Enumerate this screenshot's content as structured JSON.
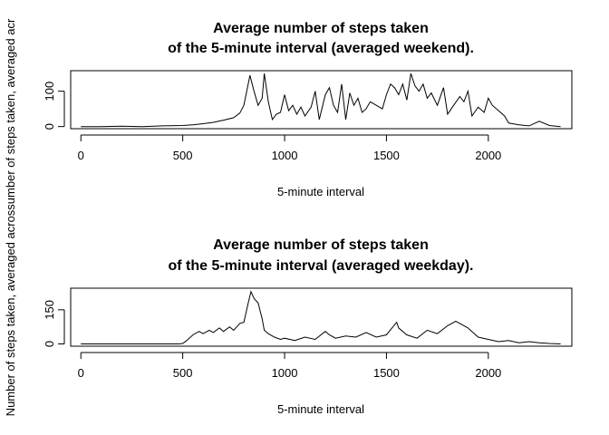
{
  "shared_ylabel": "Number of steps taken, averaged acrossumber of steps taken, averaged acr",
  "chart_data": [
    {
      "type": "line",
      "title": "Average number of steps taken\nof the 5-minute interval (averaged weekend).",
      "title_lines": [
        "Average number of steps taken",
        "of the 5-minute interval (averaged weekend)."
      ],
      "xlabel": "5-minute interval",
      "ylabel": "",
      "xlim": [
        -50,
        2410
      ],
      "ylim": [
        -6,
        158
      ],
      "xticks": [
        0,
        500,
        1000,
        1500,
        2000
      ],
      "yticks": [
        0,
        100
      ],
      "grid": false,
      "series": [
        {
          "x": [
            0,
            100,
            200,
            300,
            400,
            500,
            550,
            600,
            650,
            700,
            750,
            780,
            800,
            830,
            850,
            870,
            890,
            900,
            920,
            940,
            960,
            980,
            1000,
            1020,
            1040,
            1060,
            1080,
            1100,
            1130,
            1150,
            1170,
            1200,
            1220,
            1240,
            1260,
            1280,
            1300,
            1320,
            1340,
            1360,
            1380,
            1400,
            1420,
            1450,
            1480,
            1500,
            1520,
            1540,
            1560,
            1580,
            1600,
            1620,
            1640,
            1660,
            1680,
            1700,
            1720,
            1750,
            1780,
            1800,
            1830,
            1860,
            1880,
            1900,
            1920,
            1950,
            1980,
            2000,
            2020,
            2050,
            2080,
            2100,
            2150,
            2200,
            2250,
            2300,
            2355
          ],
          "y": [
            0,
            0,
            1,
            0,
            2,
            3,
            5,
            8,
            12,
            18,
            25,
            38,
            60,
            145,
            100,
            60,
            80,
            150,
            70,
            20,
            35,
            40,
            90,
            45,
            60,
            35,
            55,
            30,
            55,
            100,
            20,
            90,
            110,
            60,
            40,
            120,
            20,
            95,
            60,
            80,
            40,
            50,
            70,
            60,
            50,
            90,
            120,
            110,
            90,
            120,
            75,
            150,
            115,
            100,
            120,
            80,
            95,
            60,
            110,
            35,
            60,
            85,
            70,
            100,
            30,
            55,
            40,
            80,
            60,
            45,
            30,
            10,
            5,
            2,
            15,
            3,
            0
          ]
        }
      ]
    },
    {
      "type": "line",
      "title": "Average number of steps taken\nof the 5-minute interval (averaged weekday).",
      "title_lines": [
        "Average number of steps taken",
        "of the 5-minute interval (averaged weekday)."
      ],
      "xlabel": "5-minute interval",
      "ylabel": "",
      "xlim": [
        -50,
        2410
      ],
      "ylim": [
        -10,
        245
      ],
      "xticks": [
        0,
        500,
        1000,
        1500,
        2000
      ],
      "yticks": [
        0,
        150
      ],
      "grid": false,
      "series": [
        {
          "x": [
            0,
            100,
            200,
            300,
            400,
            480,
            500,
            520,
            550,
            580,
            600,
            630,
            650,
            680,
            700,
            730,
            750,
            780,
            800,
            820,
            835,
            850,
            870,
            890,
            900,
            920,
            950,
            980,
            1000,
            1050,
            1100,
            1150,
            1200,
            1220,
            1250,
            1300,
            1350,
            1400,
            1450,
            1500,
            1550,
            1560,
            1600,
            1650,
            1700,
            1750,
            1800,
            1840,
            1860,
            1900,
            1950,
            2000,
            2050,
            2100,
            2150,
            2200,
            2250,
            2300,
            2355
          ],
          "y": [
            0,
            0,
            0,
            0,
            0,
            0,
            2,
            15,
            40,
            55,
            45,
            60,
            50,
            70,
            55,
            75,
            60,
            90,
            95,
            175,
            230,
            200,
            180,
            110,
            60,
            45,
            30,
            20,
            25,
            15,
            30,
            20,
            55,
            40,
            25,
            35,
            30,
            50,
            30,
            40,
            95,
            70,
            40,
            25,
            60,
            45,
            80,
            100,
            90,
            70,
            30,
            20,
            10,
            15,
            5,
            10,
            5,
            2,
            0
          ]
        }
      ]
    }
  ]
}
